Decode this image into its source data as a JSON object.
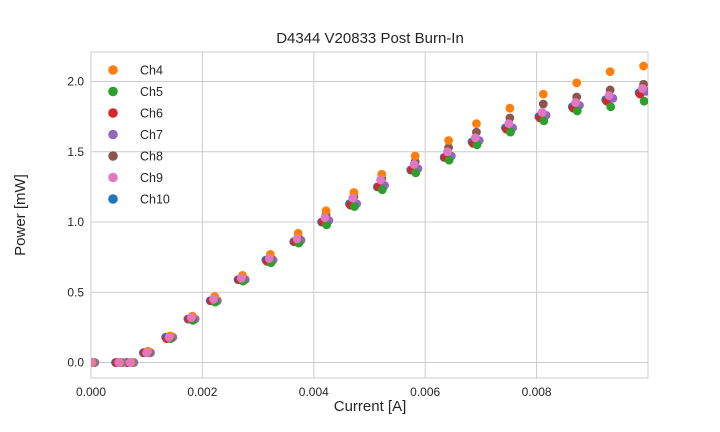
{
  "style": {
    "background": "#ffffff",
    "grid_color": "#cccccc",
    "spine_color": "#cccccc",
    "text_color": "#262626",
    "marker_radius": 4.4,
    "legend_marker_radius": 4.8
  },
  "chart_data": {
    "type": "scatter",
    "title": "D4344 V20833 Post Burn-In",
    "xlabel": "Current [A]",
    "ylabel": "Power [mW]",
    "xlim": [
      0.0,
      0.01
    ],
    "ylim": [
      -0.11,
      2.21
    ],
    "grid": true,
    "legend_position": "upper left",
    "x": [
      0.0,
      0.0005,
      0.0007,
      0.001,
      0.0014,
      0.0018,
      0.0022,
      0.0027,
      0.0032,
      0.0037,
      0.0042,
      0.0047,
      0.0052,
      0.0058,
      0.0064,
      0.0069,
      0.0075,
      0.0081,
      0.0087,
      0.0093,
      0.0099
    ],
    "xticks": {
      "values": [
        0.0,
        0.002,
        0.004,
        0.006,
        0.008
      ],
      "labels": [
        "0.000",
        "0.002",
        "0.004",
        "0.006",
        "0.008"
      ]
    },
    "yticks": {
      "values": [
        0.0,
        0.5,
        1.0,
        1.5,
        2.0
      ],
      "labels": [
        "0.0",
        "0.5",
        "1.0",
        "1.5",
        "2.0"
      ]
    },
    "series": [
      {
        "name": "Ch4",
        "color": "#ff7f0e",
        "x_offset": 2e-05,
        "values": [
          0.0,
          0.0,
          0.0,
          0.08,
          0.19,
          0.33,
          0.47,
          0.62,
          0.77,
          0.92,
          1.08,
          1.21,
          1.34,
          1.47,
          1.58,
          1.7,
          1.81,
          1.91,
          1.99,
          2.07,
          2.11
        ]
      },
      {
        "name": "Ch5",
        "color": "#2ca02c",
        "x_offset": 3e-05,
        "values": [
          0.0,
          0.0,
          0.0,
          0.07,
          0.17,
          0.3,
          0.43,
          0.58,
          0.71,
          0.85,
          0.98,
          1.11,
          1.23,
          1.35,
          1.44,
          1.55,
          1.64,
          1.72,
          1.79,
          1.82,
          1.86
        ]
      },
      {
        "name": "Ch6",
        "color": "#d62728",
        "x_offset": -4e-05,
        "values": [
          0.0,
          0.0,
          0.0,
          0.07,
          0.17,
          0.31,
          0.44,
          0.59,
          0.72,
          0.86,
          1.0,
          1.12,
          1.25,
          1.37,
          1.46,
          1.56,
          1.66,
          1.74,
          1.81,
          1.86,
          1.91
        ]
      },
      {
        "name": "Ch7",
        "color": "#9467bd",
        "x_offset": 7e-05,
        "values": [
          0.0,
          0.0,
          0.0,
          0.07,
          0.18,
          0.31,
          0.44,
          0.59,
          0.73,
          0.87,
          1.01,
          1.13,
          1.26,
          1.38,
          1.47,
          1.58,
          1.67,
          1.76,
          1.83,
          1.88,
          1.93
        ]
      },
      {
        "name": "Ch8",
        "color": "#8c564b",
        "x_offset": 2e-05,
        "values": [
          0.0,
          0.0,
          0.0,
          0.07,
          0.18,
          0.32,
          0.46,
          0.61,
          0.75,
          0.89,
          1.05,
          1.18,
          1.31,
          1.43,
          1.53,
          1.64,
          1.74,
          1.84,
          1.89,
          1.94,
          1.98
        ]
      },
      {
        "name": "Ch9",
        "color": "#e377c2",
        "x_offset": 0.0,
        "values": [
          0.0,
          0.0,
          0.0,
          0.07,
          0.18,
          0.32,
          0.45,
          0.6,
          0.74,
          0.88,
          1.03,
          1.17,
          1.3,
          1.41,
          1.5,
          1.6,
          1.7,
          1.78,
          1.85,
          1.9,
          1.95
        ]
      },
      {
        "name": "Ch10",
        "color": "#1f77b4",
        "x_offset": -6e-05,
        "values": [
          0.0,
          0.0,
          0.0,
          0.07,
          0.18,
          0.31,
          0.44,
          0.59,
          0.73,
          0.86,
          1.0,
          1.13,
          1.25,
          1.37,
          1.46,
          1.57,
          1.67,
          1.75,
          1.82,
          1.87,
          1.92
        ]
      }
    ],
    "draw_order": [
      "Ch10",
      "Ch6",
      "Ch7",
      "Ch5",
      "Ch8",
      "Ch4",
      "Ch9"
    ]
  }
}
